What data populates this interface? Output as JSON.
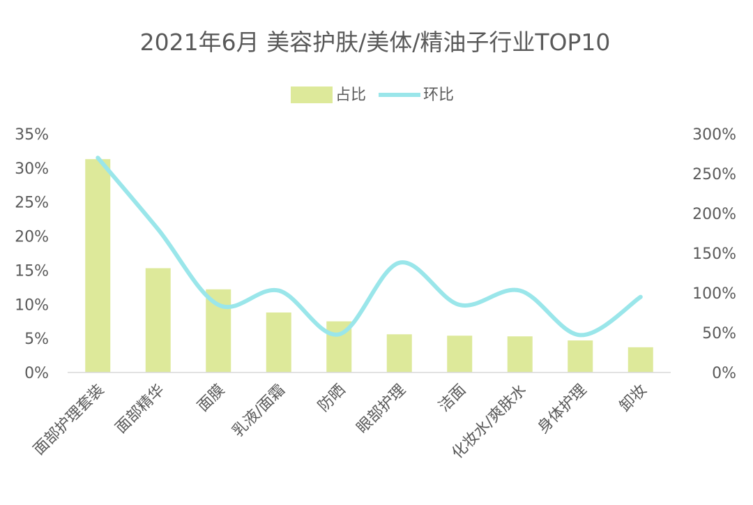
{
  "chart_data": {
    "type": "bar",
    "title": "2021年6月 美容护肤/美体/精油子行业TOP10",
    "legend_position": "top-center",
    "categories": [
      "面部护理套装",
      "面部精华",
      "面膜",
      "乳液/面霜",
      "防晒",
      "眼部护理",
      "洁面",
      "化妆水/爽肤水",
      "身体护理",
      "卸妆"
    ],
    "series": [
      {
        "name": "占比",
        "type": "bar",
        "axis": "left",
        "color": "#dde99a",
        "values": [
          31.3,
          15.3,
          12.2,
          8.8,
          7.5,
          5.6,
          5.4,
          5.3,
          4.7,
          3.7
        ]
      },
      {
        "name": "环比",
        "type": "line",
        "axis": "right",
        "color": "#9ae6ea",
        "values": [
          270,
          180,
          85,
          103,
          48,
          138,
          85,
          103,
          47,
          95
        ]
      }
    ],
    "y_left": {
      "min": 0,
      "max": 35,
      "step": 5,
      "tick_labels": [
        "0%",
        "5%",
        "10%",
        "15%",
        "20%",
        "25%",
        "30%",
        "35%"
      ]
    },
    "y_right": {
      "min": 0,
      "max": 300,
      "step": 50,
      "tick_labels": [
        "0%",
        "50%",
        "100%",
        "150%",
        "200%",
        "250%",
        "300%"
      ]
    },
    "grid": false
  }
}
